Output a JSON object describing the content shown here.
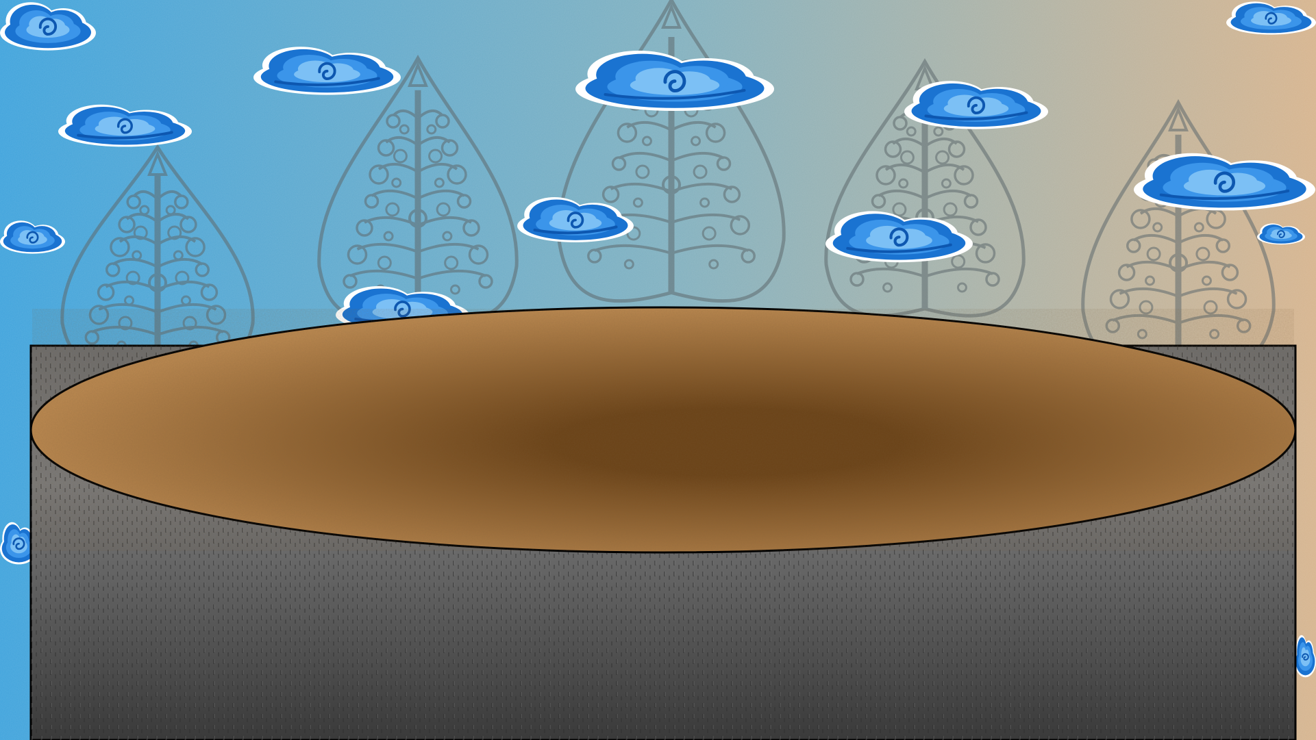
{
  "scene": {
    "background": {
      "gradient_left": "#3fa3dc",
      "gradient_mid": "#7fb0c0",
      "gradient_right": "#d6b48e"
    },
    "gunungan_count": 5,
    "gunungan_color": "#5f6a6e",
    "cloud_colors": {
      "outline": "#ffffff",
      "outer": "#1a73d1",
      "mid": "#3b95ea",
      "inner": "#7cc0f5",
      "swirl": "#0d57b0"
    },
    "pedestal": {
      "top_color": "#b9874f",
      "top_center_color": "#6b4318",
      "side_color": "#6d6d6d",
      "side_shadow": "#3a3a3a",
      "outline": "#000000"
    }
  }
}
